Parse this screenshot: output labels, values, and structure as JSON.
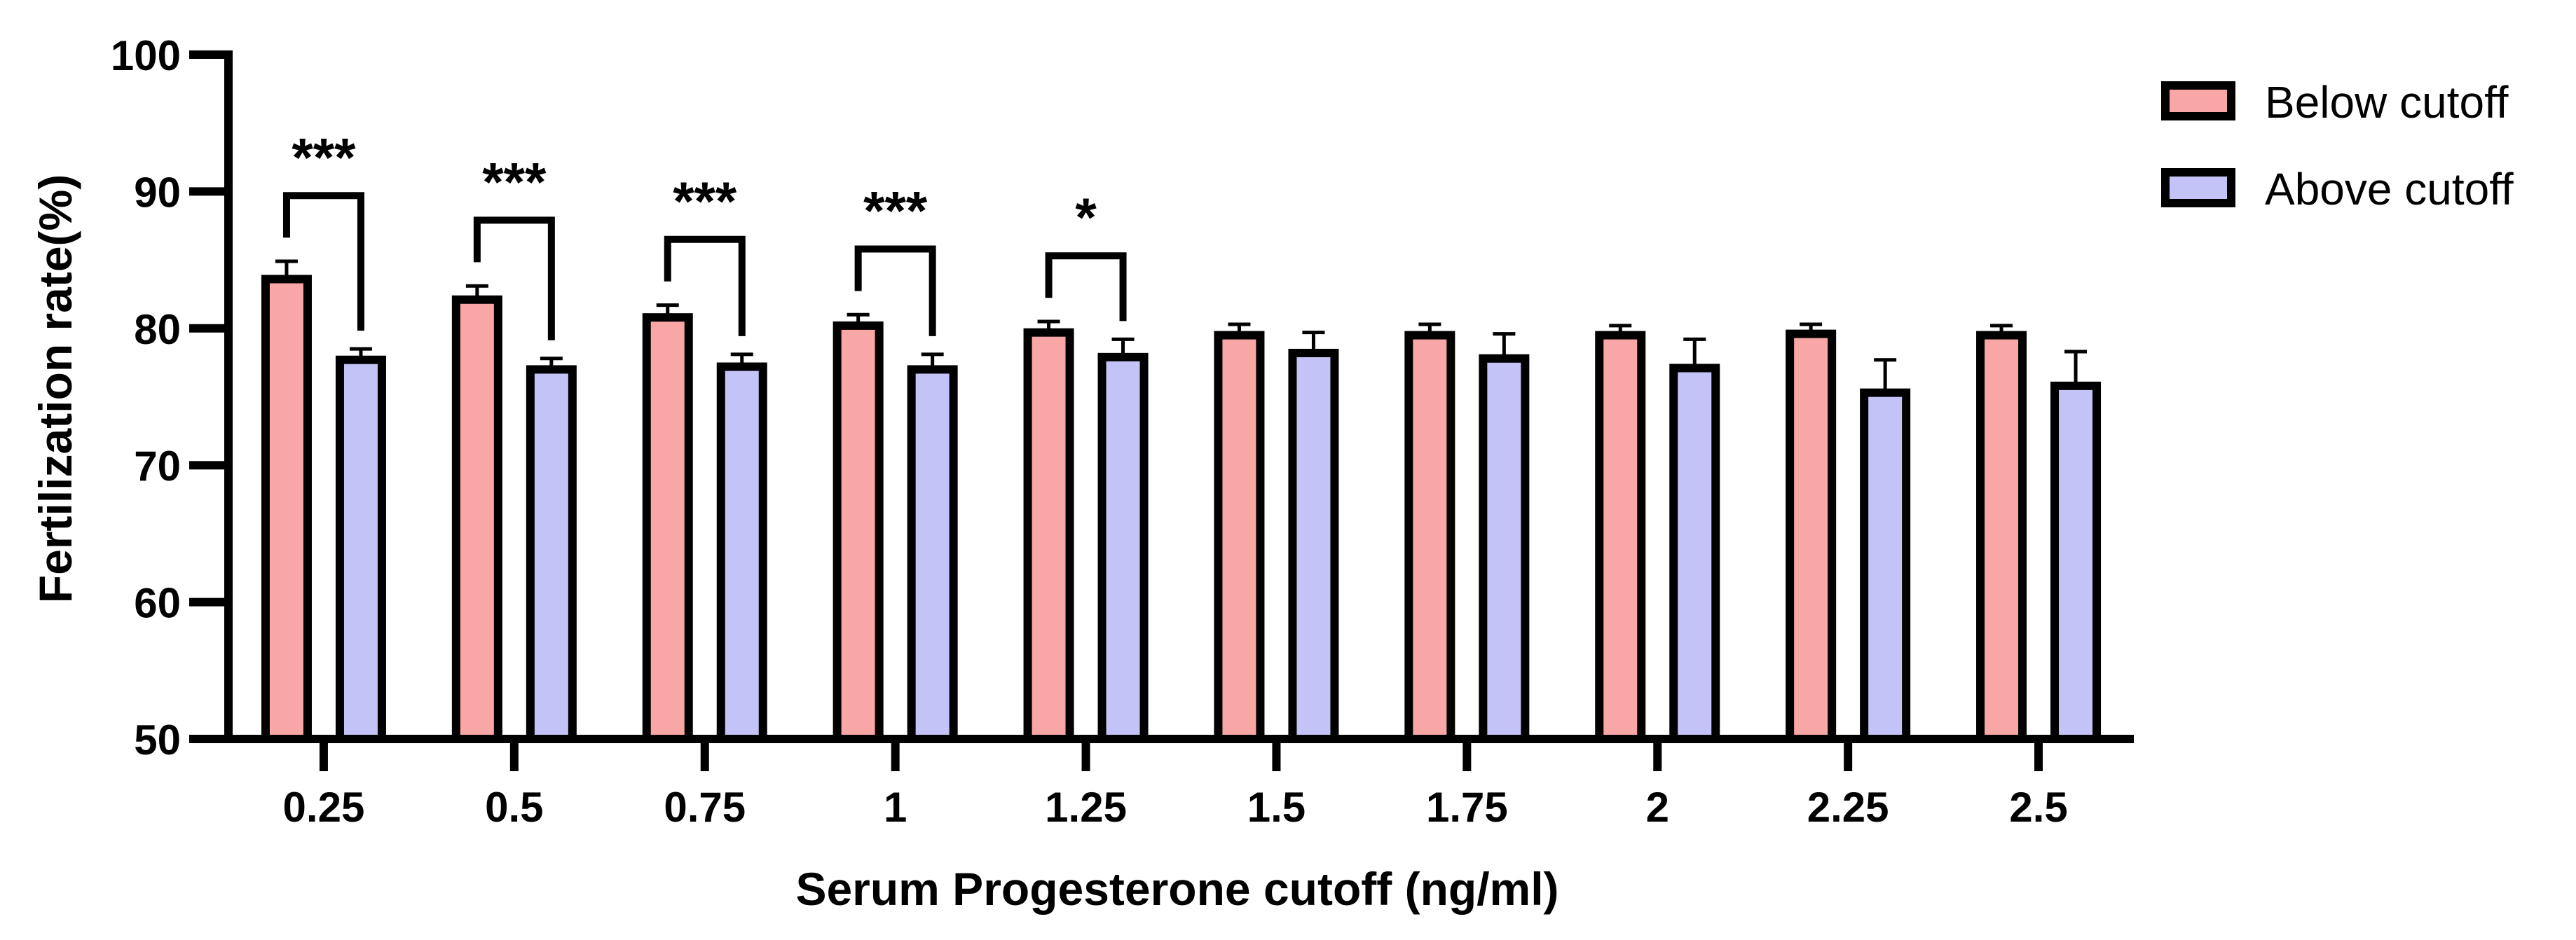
{
  "chart_data": {
    "type": "bar",
    "xlabel": "Serum Progesterone cutoff (ng/ml)",
    "ylabel": "Fertilization rate(%)",
    "ylim": [
      50,
      100
    ],
    "yticks": [
      "50",
      "60",
      "70",
      "80",
      "90",
      "100"
    ],
    "categories": [
      "0.25",
      "0.5",
      "0.75",
      "1",
      "1.25",
      "1.5",
      "1.75",
      "2",
      "2.25",
      "2.5"
    ],
    "series": [
      {
        "name": "Below cutoff",
        "color": "#f9a6a6",
        "values": [
          83.6,
          82.1,
          80.8,
          80.2,
          79.7,
          79.5,
          79.5,
          79.5,
          79.6,
          79.5
        ],
        "errors": [
          1.3,
          1.0,
          0.9,
          0.8,
          0.8,
          0.8,
          0.8,
          0.7,
          0.7,
          0.7
        ]
      },
      {
        "name": "Above cutoff",
        "color": "#c4c3f7",
        "values": [
          77.7,
          77.0,
          77.2,
          77.0,
          77.9,
          78.2,
          77.8,
          77.1,
          75.3,
          75.8
        ],
        "errors": [
          0.8,
          0.8,
          0.9,
          1.1,
          1.3,
          1.5,
          1.8,
          2.1,
          2.4,
          2.5
        ]
      }
    ],
    "significance": [
      {
        "category": "0.25",
        "label": "***"
      },
      {
        "category": "0.5",
        "label": "***"
      },
      {
        "category": "0.75",
        "label": "***"
      },
      {
        "category": "1",
        "label": "***"
      },
      {
        "category": "1.25",
        "label": "*"
      }
    ],
    "legend_position": "top-right",
    "grid": false
  }
}
